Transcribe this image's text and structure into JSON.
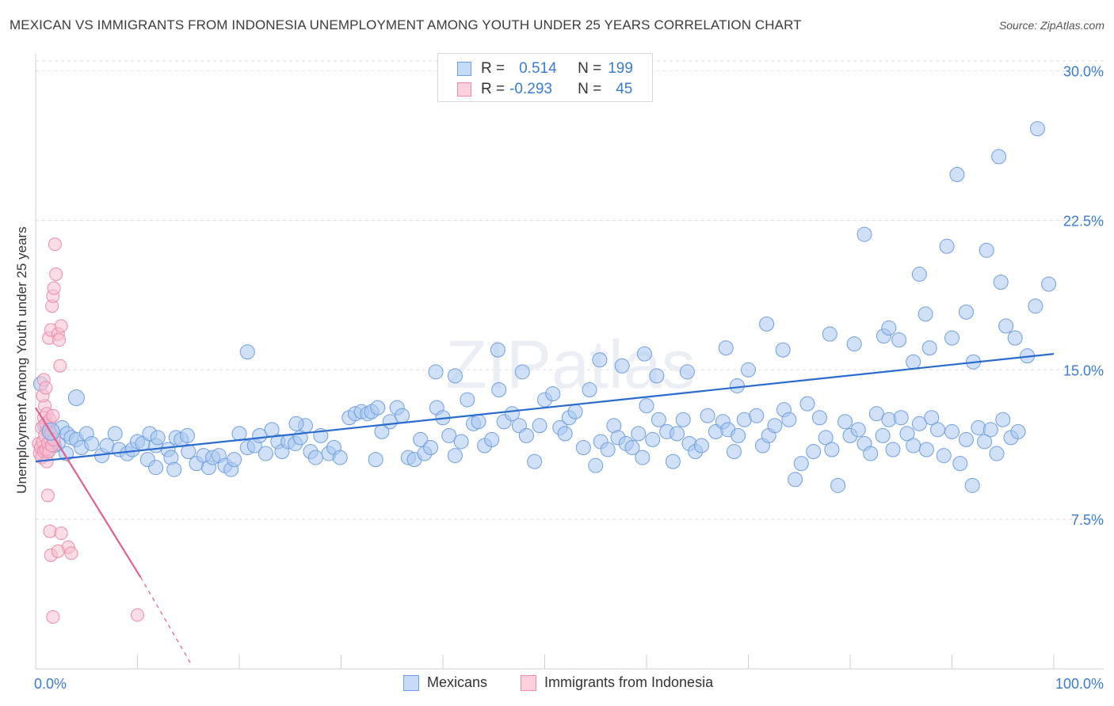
{
  "title": "MEXICAN VS IMMIGRANTS FROM INDONESIA UNEMPLOYMENT AMONG YOUTH UNDER 25 YEARS CORRELATION CHART",
  "source": "Source: ZipAtlas.com",
  "watermark": "ZIPatlas",
  "legend_stats": [
    {
      "r_label": "R =",
      "r_value": "0.514",
      "n_label": "N =",
      "n_value": "199"
    },
    {
      "r_label": "R =",
      "r_value": "-0.293",
      "n_label": "N =",
      "n_value": "45"
    }
  ],
  "colors": {
    "mexicans_fill": "#aac8f0",
    "mexicans_stroke": "#6f9fe0",
    "mexicans_line": "#2a6bd0",
    "indonesia_fill": "#f6bfd0",
    "indonesia_stroke": "#ee8aab",
    "indonesia_line": "#e0608f",
    "axis_text": "#3a7bd5",
    "grid": "#dddddd"
  },
  "chart_data": {
    "type": "scatter",
    "title": "MEXICAN VS IMMIGRANTS FROM INDONESIA UNEMPLOYMENT AMONG YOUTH UNDER 25 YEARS CORRELATION CHART",
    "xlabel": "",
    "ylabel": "Unemployment Among Youth under 25 years",
    "xlim": [
      0,
      100
    ],
    "ylim": [
      0,
      30.5
    ],
    "x_tick_labels": [
      "0.0%",
      "100.0%"
    ],
    "y_ticks": [
      7.5,
      15.0,
      22.5,
      30.0
    ],
    "y_tick_labels": [
      "7.5%",
      "15.0%",
      "22.5%",
      "30.0%"
    ],
    "grid": true,
    "legend_position": "bottom",
    "series": [
      {
        "name": "Mexicans",
        "r": 0.514,
        "n": 199,
        "trend": {
          "x": [
            0,
            100
          ],
          "y": [
            10.4,
            15.8
          ]
        },
        "points": [
          [
            0.5,
            14.3
          ],
          [
            0.9,
            12.2
          ],
          [
            1.1,
            10.9
          ],
          [
            1.2,
            12.0
          ],
          [
            1.5,
            11.5
          ],
          [
            1.8,
            11.2
          ],
          [
            2.2,
            11.3
          ],
          [
            2.6,
            12.1
          ],
          [
            3.0,
            10.8
          ],
          [
            3.1,
            11.8
          ],
          [
            3.5,
            11.6
          ],
          [
            4.0,
            11.5
          ],
          [
            4.5,
            11.1
          ],
          [
            5.0,
            11.8
          ],
          [
            5.5,
            11.3
          ],
          [
            6.5,
            10.7
          ],
          [
            7.0,
            11.2
          ],
          [
            7.8,
            11.8
          ],
          [
            8.2,
            11.0
          ],
          [
            9.0,
            10.8
          ],
          [
            9.5,
            11.0
          ],
          [
            10.0,
            11.4
          ],
          [
            10.5,
            11.3
          ],
          [
            11.2,
            11.8
          ],
          [
            11.8,
            11.2
          ],
          [
            12.0,
            11.6
          ],
          [
            13.0,
            11.0
          ],
          [
            13.8,
            11.6
          ],
          [
            14.3,
            11.5
          ],
          [
            14.9,
            11.7
          ],
          [
            11.0,
            10.5
          ],
          [
            11.8,
            10.1
          ],
          [
            13.3,
            10.6
          ],
          [
            13.6,
            10.0
          ],
          [
            15.0,
            10.9
          ],
          [
            15.8,
            10.3
          ],
          [
            16.5,
            10.7
          ],
          [
            17.0,
            10.1
          ],
          [
            17.4,
            10.6
          ],
          [
            18.0,
            10.7
          ],
          [
            18.6,
            10.2
          ],
          [
            19.2,
            10.0
          ],
          [
            19.5,
            10.5
          ],
          [
            20.0,
            11.8
          ],
          [
            20.8,
            11.1
          ],
          [
            21.5,
            11.2
          ],
          [
            22.0,
            11.7
          ],
          [
            22.6,
            10.8
          ],
          [
            23.2,
            12.0
          ],
          [
            23.8,
            11.4
          ],
          [
            24.2,
            10.9
          ],
          [
            24.8,
            11.4
          ],
          [
            25.5,
            11.3
          ],
          [
            26.0,
            11.6
          ],
          [
            26.5,
            12.2
          ],
          [
            27.0,
            10.9
          ],
          [
            27.5,
            10.6
          ],
          [
            28.0,
            11.7
          ],
          [
            28.8,
            10.8
          ],
          [
            29.3,
            11.1
          ],
          [
            29.9,
            10.6
          ],
          [
            30.8,
            12.6
          ],
          [
            31.4,
            12.8
          ],
          [
            32.0,
            12.9
          ],
          [
            32.6,
            12.8
          ],
          [
            33.0,
            12.9
          ],
          [
            33.4,
            10.5
          ],
          [
            34.0,
            11.9
          ],
          [
            34.8,
            12.4
          ],
          [
            35.5,
            13.1
          ],
          [
            36.0,
            12.7
          ],
          [
            36.6,
            10.6
          ],
          [
            37.2,
            10.5
          ],
          [
            37.8,
            11.5
          ],
          [
            38.2,
            10.8
          ],
          [
            38.8,
            11.1
          ],
          [
            39.4,
            13.1
          ],
          [
            40.0,
            12.6
          ],
          [
            40.6,
            11.7
          ],
          [
            41.2,
            10.7
          ],
          [
            41.8,
            11.4
          ],
          [
            42.4,
            13.5
          ],
          [
            43.0,
            12.3
          ],
          [
            43.5,
            12.4
          ],
          [
            44.1,
            11.2
          ],
          [
            44.8,
            11.5
          ],
          [
            45.5,
            14.0
          ],
          [
            46.0,
            12.4
          ],
          [
            46.8,
            12.8
          ],
          [
            47.5,
            12.2
          ],
          [
            48.2,
            11.7
          ],
          [
            49.0,
            10.4
          ],
          [
            49.5,
            12.2
          ],
          [
            50.0,
            13.5
          ],
          [
            50.8,
            13.8
          ],
          [
            51.5,
            12.1
          ],
          [
            52.0,
            11.8
          ],
          [
            52.4,
            12.6
          ],
          [
            53.0,
            12.9
          ],
          [
            53.8,
            11.1
          ],
          [
            54.4,
            14.0
          ],
          [
            55.0,
            10.2
          ],
          [
            55.5,
            11.4
          ],
          [
            56.2,
            11.0
          ],
          [
            56.8,
            12.2
          ],
          [
            57.2,
            11.6
          ],
          [
            58.0,
            11.3
          ],
          [
            58.6,
            11.1
          ],
          [
            59.2,
            11.8
          ],
          [
            59.6,
            10.6
          ],
          [
            60.0,
            13.2
          ],
          [
            60.6,
            11.5
          ],
          [
            61.2,
            12.5
          ],
          [
            62.0,
            11.9
          ],
          [
            62.6,
            10.4
          ],
          [
            63.0,
            11.8
          ],
          [
            63.6,
            12.5
          ],
          [
            64.2,
            11.3
          ],
          [
            64.8,
            10.9
          ],
          [
            65.4,
            11.2
          ],
          [
            66.0,
            12.7
          ],
          [
            66.8,
            11.9
          ],
          [
            67.5,
            12.4
          ],
          [
            68.0,
            12.0
          ],
          [
            68.6,
            10.9
          ],
          [
            69.0,
            11.7
          ],
          [
            69.6,
            12.5
          ],
          [
            70.0,
            15.0
          ],
          [
            70.8,
            12.7
          ],
          [
            71.4,
            11.2
          ],
          [
            72.0,
            11.7
          ],
          [
            72.6,
            12.2
          ],
          [
            73.5,
            13.0
          ],
          [
            74.0,
            12.5
          ],
          [
            74.6,
            9.5
          ],
          [
            75.2,
            10.3
          ],
          [
            75.8,
            13.3
          ],
          [
            76.4,
            10.9
          ],
          [
            77.0,
            12.6
          ],
          [
            77.6,
            11.6
          ],
          [
            78.2,
            11.0
          ],
          [
            78.8,
            9.2
          ],
          [
            79.5,
            12.4
          ],
          [
            80.0,
            11.7
          ],
          [
            80.8,
            12.0
          ],
          [
            81.4,
            11.3
          ],
          [
            82.0,
            10.8
          ],
          [
            82.6,
            12.8
          ],
          [
            83.2,
            11.7
          ],
          [
            83.8,
            12.5
          ],
          [
            84.2,
            11.0
          ],
          [
            85.0,
            12.6
          ],
          [
            85.6,
            11.8
          ],
          [
            86.2,
            11.2
          ],
          [
            86.8,
            12.3
          ],
          [
            87.5,
            11.0
          ],
          [
            88.0,
            12.6
          ],
          [
            88.6,
            12.0
          ],
          [
            89.2,
            10.7
          ],
          [
            90.0,
            11.9
          ],
          [
            90.8,
            10.3
          ],
          [
            91.4,
            11.5
          ],
          [
            92.0,
            9.2
          ],
          [
            92.6,
            12.1
          ],
          [
            93.2,
            11.4
          ],
          [
            93.8,
            12.0
          ],
          [
            94.4,
            10.8
          ],
          [
            95.0,
            12.5
          ],
          [
            95.8,
            11.6
          ],
          [
            96.5,
            11.9
          ],
          [
            20.8,
            15.9
          ],
          [
            25.6,
            12.3
          ],
          [
            33.6,
            13.1
          ],
          [
            39.3,
            14.9
          ],
          [
            41.2,
            14.7
          ],
          [
            45.4,
            16.0
          ],
          [
            47.8,
            14.9
          ],
          [
            55.4,
            15.5
          ],
          [
            57.6,
            15.2
          ],
          [
            59.8,
            15.8
          ],
          [
            61.0,
            14.7
          ],
          [
            64.0,
            14.9
          ],
          [
            67.8,
            16.1
          ],
          [
            68.9,
            14.2
          ],
          [
            71.8,
            17.3
          ],
          [
            73.4,
            16.0
          ],
          [
            78.0,
            16.8
          ],
          [
            80.4,
            16.3
          ],
          [
            81.4,
            21.8
          ],
          [
            83.3,
            16.7
          ],
          [
            83.8,
            17.1
          ],
          [
            84.8,
            16.5
          ],
          [
            86.2,
            15.4
          ],
          [
            86.8,
            19.8
          ],
          [
            87.4,
            17.8
          ],
          [
            87.8,
            16.1
          ],
          [
            89.5,
            21.2
          ],
          [
            90.0,
            16.6
          ],
          [
            90.5,
            24.8
          ],
          [
            91.4,
            17.9
          ],
          [
            92.1,
            15.4
          ],
          [
            93.4,
            21.0
          ],
          [
            94.6,
            25.7
          ],
          [
            94.8,
            19.4
          ],
          [
            95.3,
            17.2
          ],
          [
            96.2,
            16.6
          ],
          [
            97.4,
            15.7
          ],
          [
            98.2,
            18.2
          ],
          [
            98.4,
            27.1
          ],
          [
            99.5,
            19.3
          ]
        ]
      },
      {
        "name": "Immigrants from Indonesia",
        "r": -0.293,
        "n": 45,
        "trend": {
          "x": [
            0,
            10.3
          ],
          "y": [
            13.1,
            4.6
          ],
          "dashed_to": {
            "x": 15.2,
            "y": 0.3
          }
        },
        "points": [
          [
            0.3,
            11.3
          ],
          [
            0.4,
            10.8
          ],
          [
            0.5,
            11.1
          ],
          [
            0.6,
            10.6
          ],
          [
            0.6,
            12.1
          ],
          [
            0.7,
            11.4
          ],
          [
            0.8,
            10.9
          ],
          [
            0.8,
            12.6
          ],
          [
            0.9,
            13.2
          ],
          [
            0.9,
            11.7
          ],
          [
            1.0,
            12.3
          ],
          [
            1.0,
            11.0
          ],
          [
            1.1,
            10.4
          ],
          [
            1.1,
            12.8
          ],
          [
            1.2,
            11.3
          ],
          [
            1.3,
            12.0
          ],
          [
            1.3,
            10.9
          ],
          [
            1.4,
            12.5
          ],
          [
            1.5,
            11.8
          ],
          [
            1.6,
            11.2
          ],
          [
            1.7,
            12.7
          ],
          [
            1.8,
            11.5
          ],
          [
            0.8,
            14.5
          ],
          [
            0.7,
            13.7
          ],
          [
            1.0,
            14.1
          ],
          [
            1.3,
            16.6
          ],
          [
            1.5,
            17.0
          ],
          [
            1.6,
            18.2
          ],
          [
            1.7,
            18.7
          ],
          [
            1.8,
            19.1
          ],
          [
            1.9,
            21.3
          ],
          [
            2.0,
            19.8
          ],
          [
            2.2,
            16.8
          ],
          [
            2.3,
            16.5
          ],
          [
            2.5,
            17.2
          ],
          [
            2.4,
            15.2
          ],
          [
            1.2,
            8.7
          ],
          [
            1.4,
            6.9
          ],
          [
            2.5,
            6.8
          ],
          [
            3.2,
            6.1
          ],
          [
            1.5,
            5.7
          ],
          [
            2.2,
            5.9
          ],
          [
            3.5,
            5.8
          ],
          [
            1.7,
            2.6
          ],
          [
            10.0,
            2.7
          ]
        ]
      }
    ]
  },
  "bottom_legend": [
    "Mexicans",
    "Immigrants from Indonesia"
  ]
}
